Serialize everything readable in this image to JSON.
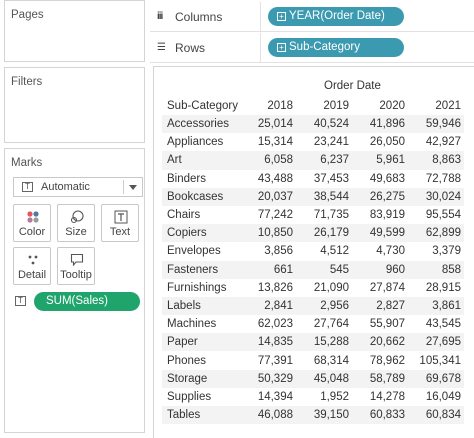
{
  "left_panel": {
    "pages_title": "Pages",
    "filters_title": "Filters",
    "marks": {
      "title": "Marks",
      "type_icon": "T",
      "mark_type": "Automatic",
      "buttons": [
        {
          "label": "Color",
          "icon": "color-dots-icon"
        },
        {
          "label": "Size",
          "icon": "size-icon"
        },
        {
          "label": "Text",
          "icon": "text-icon"
        },
        {
          "label": "Detail",
          "icon": "detail-dots-icon"
        },
        {
          "label": "Tooltip",
          "icon": "tooltip-icon"
        }
      ],
      "field_icon": "T",
      "field_pill": "SUM(Sales)"
    }
  },
  "shelves": {
    "columns": {
      "label": "Columns",
      "pill": "YEAR(Order Date)"
    },
    "rows": {
      "label": "Rows",
      "pill": "Sub-Category"
    }
  },
  "view": {
    "column_header": "Order Date",
    "row_header": "Sub-Category",
    "years": [
      "2018",
      "2019",
      "2020",
      "2021"
    ],
    "rows": [
      {
        "name": "Accessories",
        "values": [
          "25,014",
          "40,524",
          "41,896",
          "59,946"
        ]
      },
      {
        "name": "Appliances",
        "values": [
          "15,314",
          "23,241",
          "26,050",
          "42,927"
        ]
      },
      {
        "name": "Art",
        "values": [
          "6,058",
          "6,237",
          "5,961",
          "8,863"
        ]
      },
      {
        "name": "Binders",
        "values": [
          "43,488",
          "37,453",
          "49,683",
          "72,788"
        ]
      },
      {
        "name": "Bookcases",
        "values": [
          "20,037",
          "38,544",
          "26,275",
          "30,024"
        ]
      },
      {
        "name": "Chairs",
        "values": [
          "77,242",
          "71,735",
          "83,919",
          "95,554"
        ]
      },
      {
        "name": "Copiers",
        "values": [
          "10,850",
          "26,179",
          "49,599",
          "62,899"
        ]
      },
      {
        "name": "Envelopes",
        "values": [
          "3,856",
          "4,512",
          "4,730",
          "3,379"
        ]
      },
      {
        "name": "Fasteners",
        "values": [
          "661",
          "545",
          "960",
          "858"
        ]
      },
      {
        "name": "Furnishings",
        "values": [
          "13,826",
          "21,090",
          "27,874",
          "28,915"
        ]
      },
      {
        "name": "Labels",
        "values": [
          "2,841",
          "2,956",
          "2,827",
          "3,861"
        ]
      },
      {
        "name": "Machines",
        "values": [
          "62,023",
          "27,764",
          "55,907",
          "43,545"
        ]
      },
      {
        "name": "Paper",
        "values": [
          "14,835",
          "15,288",
          "20,662",
          "27,695"
        ]
      },
      {
        "name": "Phones",
        "values": [
          "77,391",
          "68,314",
          "78,962",
          "105,341"
        ]
      },
      {
        "name": "Storage",
        "values": [
          "50,329",
          "45,048",
          "58,789",
          "69,678"
        ]
      },
      {
        "name": "Supplies",
        "values": [
          "14,394",
          "1,952",
          "14,278",
          "16,049"
        ]
      },
      {
        "name": "Tables",
        "values": [
          "46,088",
          "39,150",
          "60,833",
          "60,834"
        ]
      }
    ]
  }
}
